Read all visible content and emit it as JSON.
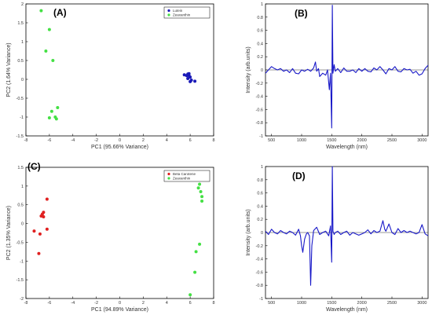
{
  "chart_data": [
    {
      "type": "scatter",
      "panel_label": "(A)",
      "xlabel": "PC1 (95.66% Variance)",
      "ylabel": "PC2 (1.64% Variance)",
      "xlim": [
        -8,
        8
      ],
      "ylim": [
        -1.5,
        2
      ],
      "xticks": [
        -8,
        -6,
        -4,
        -2,
        0,
        2,
        4,
        6,
        8
      ],
      "yticks": [
        -1.5,
        -1,
        -0.5,
        0,
        0.5,
        1,
        1.5,
        2
      ],
      "legend_position": "top-right",
      "series": [
        {
          "name": "Lutein",
          "color": "#1a1ab8",
          "x": [
            5.5,
            5.7,
            5.8,
            5.9,
            6.0,
            6.0,
            6.1,
            5.8,
            6.4,
            5.9
          ],
          "y": [
            0.12,
            0.1,
            0.14,
            0.1,
            0.06,
            -0.06,
            -0.02,
            0.02,
            -0.05,
            0.15
          ]
        },
        {
          "name": "Zeaxanthin",
          "color": "#44e044",
          "x": [
            -6.7,
            -6.3,
            -6.0,
            -5.7,
            -5.8,
            -5.3,
            -5.5,
            -6.0,
            -5.4
          ],
          "y": [
            1.82,
            0.75,
            1.32,
            0.5,
            -0.85,
            -0.75,
            -1.0,
            -1.02,
            -1.05
          ]
        }
      ]
    },
    {
      "type": "line",
      "panel_label": "(B)",
      "xlabel": "Wavelength (nm)",
      "ylabel": "Intensity (arb.units)",
      "xlim": [
        400,
        3100
      ],
      "ylim": [
        -1,
        1
      ],
      "xticks": [
        500,
        1000,
        1500,
        2000,
        2500,
        3000
      ],
      "yticks": [
        -1,
        -0.8,
        -0.6,
        -0.4,
        -0.2,
        0,
        0.2,
        0.4,
        0.6,
        0.8,
        1
      ],
      "series": [
        {
          "color": "#1818c8",
          "x": [
            400,
            450,
            500,
            550,
            600,
            650,
            700,
            750,
            800,
            850,
            900,
            950,
            1000,
            1050,
            1100,
            1150,
            1200,
            1230,
            1250,
            1280,
            1300,
            1350,
            1400,
            1430,
            1460,
            1480,
            1500,
            1510,
            1520,
            1540,
            1560,
            1600,
            1650,
            1700,
            1750,
            1800,
            1850,
            1900,
            1950,
            2000,
            2050,
            2100,
            2150,
            2200,
            2250,
            2300,
            2350,
            2400,
            2450,
            2500,
            2550,
            2600,
            2650,
            2700,
            2750,
            2800,
            2850,
            2900,
            2950,
            3000,
            3050,
            3100
          ],
          "y": [
            -0.05,
            0.0,
            0.05,
            0.02,
            0.0,
            0.02,
            -0.02,
            0.0,
            -0.04,
            0.02,
            -0.05,
            -0.06,
            0.0,
            -0.02,
            0.01,
            -0.02,
            0.03,
            0.12,
            -0.02,
            0.02,
            -0.1,
            -0.05,
            -0.08,
            0.0,
            -0.3,
            -0.05,
            -0.88,
            0.98,
            -0.05,
            0.08,
            -0.02,
            0.02,
            -0.04,
            0.03,
            -0.02,
            -0.02,
            0.0,
            -0.04,
            0.02,
            -0.02,
            0.02,
            -0.02,
            -0.03,
            0.03,
            0.0,
            0.05,
            0.0,
            -0.06,
            0.02,
            0.0,
            0.05,
            -0.02,
            -0.03,
            0.02,
            0.0,
            0.01,
            -0.05,
            -0.02,
            -0.08,
            -0.06,
            0.02,
            0.07
          ]
        }
      ]
    },
    {
      "type": "scatter",
      "panel_label": "(C)",
      "xlabel": "PC1 (94.89% Variance)",
      "ylabel": "PC2 (1.35% Variance)",
      "xlim": [
        -8,
        8
      ],
      "ylim": [
        -2,
        1.5
      ],
      "xticks": [
        -8,
        -6,
        -4,
        -2,
        0,
        2,
        4,
        6,
        8
      ],
      "yticks": [
        -2,
        -1.5,
        -1,
        -0.5,
        0,
        0.5,
        1,
        1.5
      ],
      "legend_position": "top-right",
      "series": [
        {
          "name": "Beta Carotene",
          "color": "#e02020",
          "x": [
            -6.2,
            -6.5,
            -6.6,
            -6.5,
            -6.7,
            -6.2,
            -7.3,
            -6.8,
            -6.9
          ],
          "y": [
            0.65,
            0.3,
            0.25,
            0.18,
            0.2,
            -0.15,
            -0.2,
            -0.28,
            -0.8
          ]
        },
        {
          "name": "Zeaxanthin",
          "color": "#44e044",
          "x": [
            6.8,
            6.7,
            6.9,
            7.0,
            7.0,
            6.8,
            6.5,
            6.4,
            6.0
          ],
          "y": [
            1.05,
            0.95,
            0.85,
            0.72,
            0.6,
            -0.55,
            -0.75,
            -1.3,
            -1.9
          ]
        }
      ]
    },
    {
      "type": "line",
      "panel_label": "(D)",
      "xlabel": "Wavelength (nm)",
      "ylabel": "Intensity (arb.units)",
      "xlim": [
        400,
        3100
      ],
      "ylim": [
        -1,
        1
      ],
      "xticks": [
        500,
        1000,
        1500,
        2000,
        2500,
        3000
      ],
      "yticks": [
        -1,
        -0.8,
        -0.6,
        -0.4,
        -0.2,
        0,
        0.2,
        0.4,
        0.6,
        0.8,
        1
      ],
      "series": [
        {
          "color": "#1818c8",
          "x": [
            400,
            450,
            500,
            550,
            600,
            650,
            700,
            750,
            800,
            850,
            900,
            950,
            980,
            1000,
            1020,
            1050,
            1080,
            1100,
            1130,
            1150,
            1170,
            1200,
            1250,
            1300,
            1350,
            1400,
            1450,
            1480,
            1500,
            1510,
            1520,
            1540,
            1560,
            1600,
            1650,
            1700,
            1750,
            1800,
            1850,
            1900,
            1950,
            2000,
            2050,
            2100,
            2150,
            2200,
            2250,
            2300,
            2350,
            2380,
            2400,
            2450,
            2500,
            2550,
            2600,
            2650,
            2700,
            2750,
            2800,
            2850,
            2900,
            2950,
            3000,
            3050,
            3100
          ],
          "y": [
            0.02,
            -0.03,
            0.05,
            0.0,
            -0.02,
            0.03,
            0.0,
            -0.02,
            0.02,
            0.0,
            -0.04,
            0.05,
            -0.05,
            -0.2,
            -0.3,
            -0.1,
            -0.02,
            0.0,
            -0.05,
            -0.8,
            -0.2,
            0.03,
            0.08,
            -0.03,
            0.0,
            0.02,
            -0.05,
            0.1,
            -0.45,
            1.0,
            0.02,
            -0.03,
            0.0,
            0.02,
            -0.03,
            0.0,
            0.02,
            -0.04,
            0.0,
            -0.02,
            -0.04,
            -0.02,
            0.0,
            0.04,
            -0.02,
            0.03,
            0.0,
            0.02,
            0.18,
            0.05,
            0.02,
            0.13,
            0.0,
            -0.03,
            0.06,
            0.0,
            0.03,
            0.0,
            0.02,
            0.0,
            -0.02,
            0.0,
            0.12,
            -0.02,
            -0.05
          ]
        }
      ]
    }
  ]
}
